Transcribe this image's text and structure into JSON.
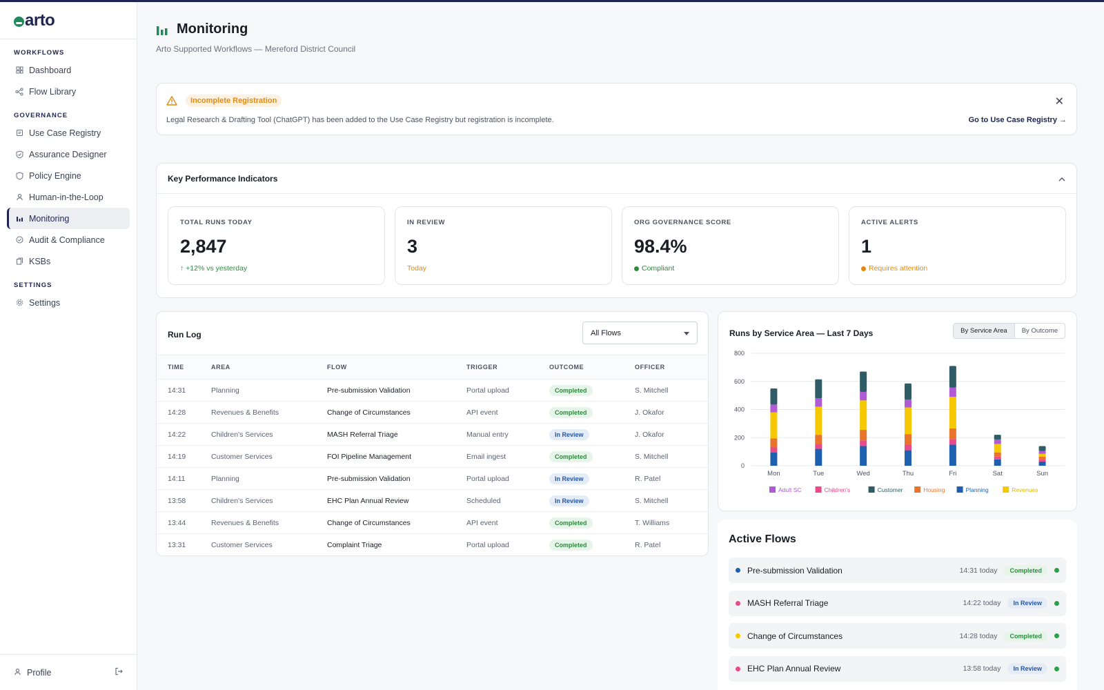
{
  "app": {
    "logo": "arto"
  },
  "sidebar": {
    "sections": [
      {
        "title": "WORKFLOWS",
        "items": [
          {
            "label": "Dashboard",
            "icon": "grid-icon"
          },
          {
            "label": "Flow Library",
            "icon": "nodes-icon"
          }
        ]
      },
      {
        "title": "GOVERNANCE",
        "items": [
          {
            "label": "Use Case Registry",
            "icon": "registry-icon"
          },
          {
            "label": "Assurance Designer",
            "icon": "shield-check-icon"
          },
          {
            "label": "Policy Engine",
            "icon": "shield-icon"
          },
          {
            "label": "Human-in-the-Loop",
            "icon": "person-icon"
          },
          {
            "label": "Monitoring",
            "icon": "bar-chart-icon",
            "active": true
          },
          {
            "label": "Audit & Compliance",
            "icon": "check-circle-icon"
          },
          {
            "label": "KSBs",
            "icon": "book-icon"
          }
        ]
      },
      {
        "title": "SETTINGS",
        "items": [
          {
            "label": "Settings",
            "icon": "gear-icon"
          }
        ]
      }
    ],
    "footer": {
      "label": "Profile"
    }
  },
  "header": {
    "title": "Monitoring",
    "subtitle": "Arto Supported Workflows — Mereford District Council"
  },
  "alert": {
    "badge": "Incomplete Registration",
    "text": "Legal Research & Drafting Tool (ChatGPT) has been added to the Use Case Registry but registration is incomplete.",
    "link": "Go to Use Case Registry →"
  },
  "kpi": {
    "title": "Key Performance Indicators",
    "cards": [
      {
        "label": "TOTAL RUNS TODAY",
        "value": "2,847",
        "sub": "↑ +12% vs yesterday",
        "color": "#2e8b3e",
        "dot": false
      },
      {
        "label": "IN REVIEW",
        "value": "3",
        "sub": "Today",
        "color": "#e08a12",
        "dot": false
      },
      {
        "label": "ORG GOVERNANCE SCORE",
        "value": "98.4%",
        "sub": "Compliant",
        "color": "#2e8b3e",
        "dot": true
      },
      {
        "label": "ACTIVE ALERTS",
        "value": "1",
        "sub": "Requires attention",
        "color": "#e08a12",
        "dot": true
      }
    ]
  },
  "runlog": {
    "title": "Run Log",
    "filter": "All Flows",
    "columns": [
      "TIME",
      "AREA",
      "FLOW",
      "TRIGGER",
      "OUTCOME",
      "OFFICER"
    ],
    "rows": [
      [
        "14:31",
        "Planning",
        "Pre-submission Validation",
        "Portal upload",
        "Completed",
        "S. Mitchell"
      ],
      [
        "14:28",
        "Revenues & Benefits",
        "Change of Circumstances",
        "API event",
        "Completed",
        "J. Okafor"
      ],
      [
        "14:22",
        "Children's Services",
        "MASH Referral Triage",
        "Manual entry",
        "In Review",
        "J. Okafor"
      ],
      [
        "14:19",
        "Customer Services",
        "FOI Pipeline Management",
        "Email ingest",
        "Completed",
        "S. Mitchell"
      ],
      [
        "14:11",
        "Planning",
        "Pre-submission Validation",
        "Portal upload",
        "In Review",
        "R. Patel"
      ],
      [
        "13:58",
        "Children's Services",
        "EHC Plan Annual Review",
        "Scheduled",
        "In Review",
        "S. Mitchell"
      ],
      [
        "13:44",
        "Revenues & Benefits",
        "Change of Circumstances",
        "API event",
        "Completed",
        "T. Williams"
      ],
      [
        "13:31",
        "Customer Services",
        "Complaint Triage",
        "Portal upload",
        "Completed",
        "R. Patel"
      ]
    ]
  },
  "chart_panel": {
    "title": "Runs by Service Area — Last 7 Days",
    "toggle": [
      "By Service Area",
      "By Outcome"
    ]
  },
  "chart_data": {
    "type": "bar",
    "stacked": true,
    "categories": [
      "Mon",
      "Tue",
      "Wed",
      "Thu",
      "Fri",
      "Sat",
      "Sun"
    ],
    "ylim": [
      0,
      800
    ],
    "yticks": [
      0,
      200,
      400,
      600,
      800
    ],
    "grid": true,
    "legend_position": "bottom",
    "series": [
      {
        "name": "Planning",
        "color": "#1f5fb0",
        "values": [
          95,
          120,
          140,
          110,
          150,
          45,
          30
        ]
      },
      {
        "name": "Children's",
        "color": "#e84a8a",
        "values": [
          35,
          35,
          40,
          40,
          40,
          20,
          15
        ]
      },
      {
        "name": "Housing",
        "color": "#e8742a",
        "values": [
          65,
          65,
          75,
          75,
          75,
          30,
          20
        ]
      },
      {
        "name": "Revenues",
        "color": "#f5c800",
        "values": [
          185,
          200,
          210,
          190,
          225,
          60,
          20
        ]
      },
      {
        "name": "Adult SC",
        "color": "#b05ad6",
        "values": [
          55,
          60,
          60,
          55,
          65,
          30,
          20
        ]
      },
      {
        "name": "Customer",
        "color": "#2f5c66",
        "values": [
          115,
          135,
          145,
          115,
          155,
          35,
          35
        ]
      }
    ]
  },
  "active_flows": {
    "title": "Active Flows",
    "items": [
      {
        "name": "Pre-submission Validation",
        "time": "14:31 today",
        "status": "Completed",
        "color": "#1f5fb0"
      },
      {
        "name": "MASH Referral Triage",
        "time": "14:22 today",
        "status": "In Review",
        "color": "#e84a8a"
      },
      {
        "name": "Change of Circumstances",
        "time": "14:28 today",
        "status": "Completed",
        "color": "#f5c800"
      },
      {
        "name": "EHC Plan Annual Review",
        "time": "13:58 today",
        "status": "In Review",
        "color": "#e84a8a"
      }
    ]
  }
}
